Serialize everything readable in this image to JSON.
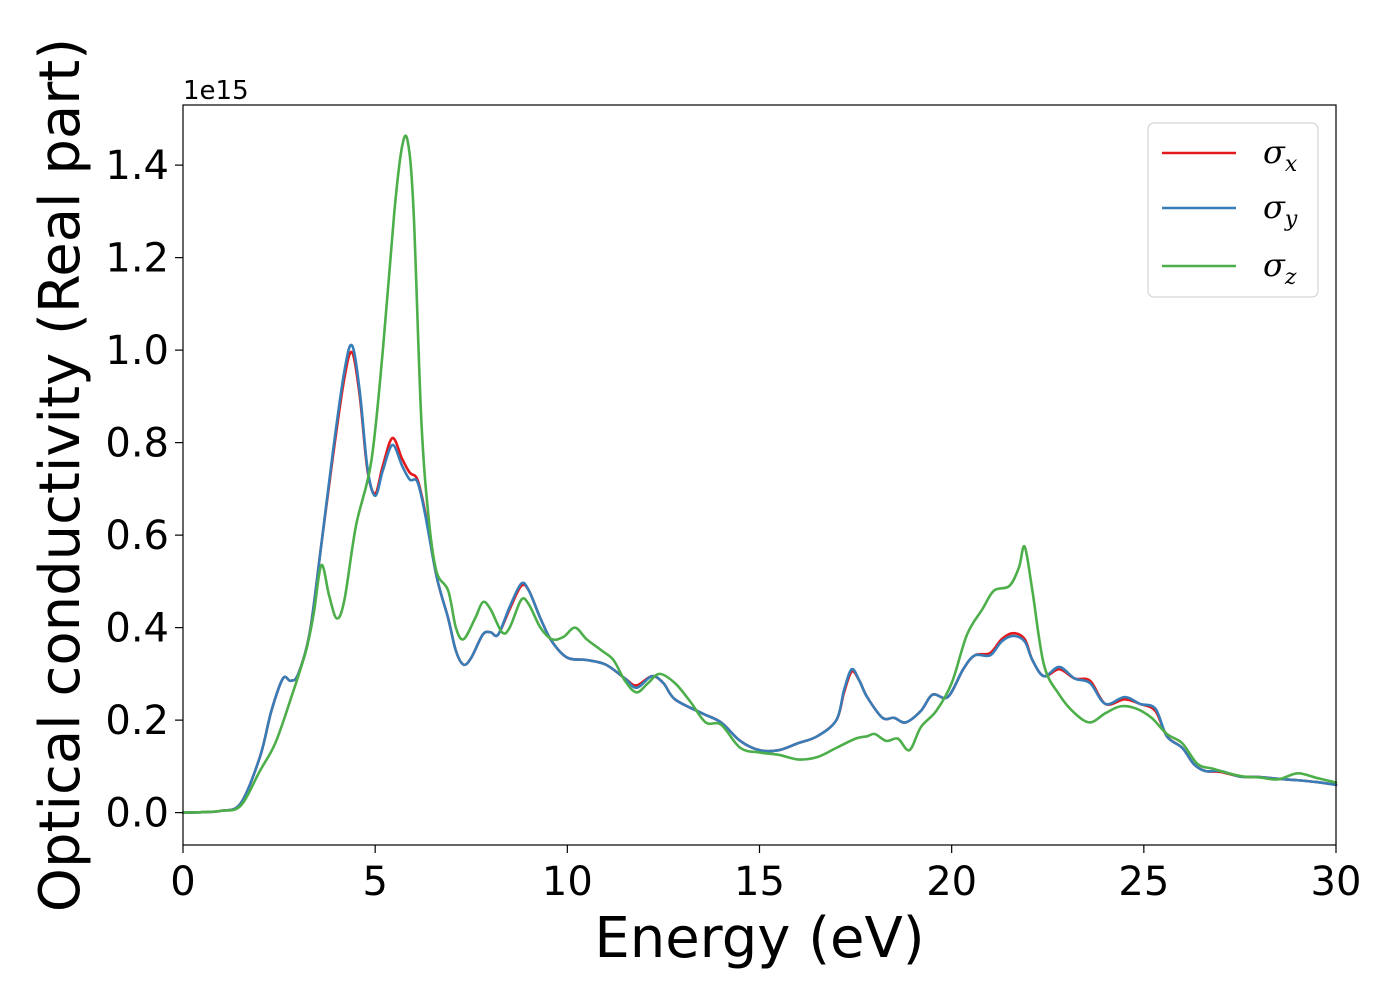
{
  "chart_data": {
    "type": "line",
    "title": "",
    "xlabel": "Energy (eV)",
    "ylabel": "Optical conductivity (Real part)",
    "y_offset_label": "1e15",
    "xlim": [
      0,
      30
    ],
    "ylim": [
      -0.07,
      1.53
    ],
    "x_ticks": [
      0,
      5,
      10,
      15,
      20,
      25,
      30
    ],
    "y_ticks": [
      0.0,
      0.2,
      0.4,
      0.6,
      0.8,
      1.0,
      1.2,
      1.4
    ],
    "y_tick_labels": [
      "0.0",
      "0.2",
      "0.4",
      "0.6",
      "0.8",
      "1.0",
      "1.2",
      "1.4"
    ],
    "grid": false,
    "legend": {
      "position": "top-right"
    },
    "series": [
      {
        "name": "σx",
        "symbol": "σ",
        "subscript": "x",
        "color": "#e41a1c",
        "points": [
          [
            0,
            0
          ],
          [
            0.5,
            0.001
          ],
          [
            1,
            0.004
          ],
          [
            1.5,
            0.02
          ],
          [
            2,
            0.12
          ],
          [
            2.3,
            0.22
          ],
          [
            2.6,
            0.29
          ],
          [
            2.8,
            0.285
          ],
          [
            3,
            0.3
          ],
          [
            3.3,
            0.39
          ],
          [
            3.6,
            0.58
          ],
          [
            3.9,
            0.77
          ],
          [
            4.2,
            0.94
          ],
          [
            4.4,
            0.995
          ],
          [
            4.6,
            0.9
          ],
          [
            4.8,
            0.74
          ],
          [
            5.0,
            0.69
          ],
          [
            5.2,
            0.75
          ],
          [
            5.45,
            0.81
          ],
          [
            5.7,
            0.765
          ],
          [
            5.9,
            0.735
          ],
          [
            6.1,
            0.72
          ],
          [
            6.3,
            0.65
          ],
          [
            6.6,
            0.51
          ],
          [
            6.9,
            0.42
          ],
          [
            7.1,
            0.35
          ],
          [
            7.3,
            0.32
          ],
          [
            7.5,
            0.335
          ],
          [
            7.8,
            0.385
          ],
          [
            8.0,
            0.39
          ],
          [
            8.2,
            0.385
          ],
          [
            8.5,
            0.44
          ],
          [
            8.8,
            0.49
          ],
          [
            9.0,
            0.48
          ],
          [
            9.3,
            0.42
          ],
          [
            9.6,
            0.37
          ],
          [
            10,
            0.335
          ],
          [
            10.5,
            0.33
          ],
          [
            11,
            0.32
          ],
          [
            11.5,
            0.29
          ],
          [
            11.8,
            0.275
          ],
          [
            12.2,
            0.295
          ],
          [
            12.5,
            0.28
          ],
          [
            12.8,
            0.245
          ],
          [
            13.5,
            0.215
          ],
          [
            14,
            0.195
          ],
          [
            14.5,
            0.155
          ],
          [
            15,
            0.135
          ],
          [
            15.5,
            0.135
          ],
          [
            16,
            0.15
          ],
          [
            16.5,
            0.165
          ],
          [
            17,
            0.2
          ],
          [
            17.2,
            0.26
          ],
          [
            17.4,
            0.305
          ],
          [
            17.6,
            0.285
          ],
          [
            17.8,
            0.25
          ],
          [
            18.2,
            0.205
          ],
          [
            18.5,
            0.205
          ],
          [
            18.8,
            0.195
          ],
          [
            19.2,
            0.22
          ],
          [
            19.5,
            0.255
          ],
          [
            19.9,
            0.25
          ],
          [
            20.3,
            0.31
          ],
          [
            20.6,
            0.34
          ],
          [
            21,
            0.345
          ],
          [
            21.3,
            0.375
          ],
          [
            21.6,
            0.388
          ],
          [
            21.9,
            0.375
          ],
          [
            22.1,
            0.33
          ],
          [
            22.4,
            0.295
          ],
          [
            22.8,
            0.31
          ],
          [
            23.2,
            0.29
          ],
          [
            23.6,
            0.285
          ],
          [
            24.0,
            0.235
          ],
          [
            24.5,
            0.245
          ],
          [
            24.9,
            0.235
          ],
          [
            25.3,
            0.22
          ],
          [
            25.6,
            0.165
          ],
          [
            26.0,
            0.14
          ],
          [
            26.3,
            0.105
          ],
          [
            26.6,
            0.09
          ],
          [
            27.0,
            0.088
          ],
          [
            27.5,
            0.078
          ],
          [
            28.0,
            0.077
          ],
          [
            28.5,
            0.073
          ],
          [
            29.0,
            0.07
          ],
          [
            29.5,
            0.066
          ],
          [
            30,
            0.06
          ]
        ]
      },
      {
        "name": "σy",
        "symbol": "σ",
        "subscript": "y",
        "color": "#377eb8",
        "points": [
          [
            0,
            0
          ],
          [
            0.5,
            0.001
          ],
          [
            1,
            0.004
          ],
          [
            1.5,
            0.02
          ],
          [
            2,
            0.12
          ],
          [
            2.3,
            0.22
          ],
          [
            2.6,
            0.29
          ],
          [
            2.8,
            0.285
          ],
          [
            3,
            0.3
          ],
          [
            3.3,
            0.39
          ],
          [
            3.6,
            0.58
          ],
          [
            3.9,
            0.78
          ],
          [
            4.2,
            0.955
          ],
          [
            4.4,
            1.01
          ],
          [
            4.6,
            0.91
          ],
          [
            4.8,
            0.745
          ],
          [
            5.0,
            0.685
          ],
          [
            5.2,
            0.74
          ],
          [
            5.45,
            0.795
          ],
          [
            5.7,
            0.75
          ],
          [
            5.9,
            0.72
          ],
          [
            6.1,
            0.715
          ],
          [
            6.3,
            0.645
          ],
          [
            6.6,
            0.51
          ],
          [
            6.9,
            0.42
          ],
          [
            7.1,
            0.35
          ],
          [
            7.3,
            0.32
          ],
          [
            7.5,
            0.335
          ],
          [
            7.8,
            0.385
          ],
          [
            8.0,
            0.39
          ],
          [
            8.2,
            0.385
          ],
          [
            8.5,
            0.445
          ],
          [
            8.8,
            0.495
          ],
          [
            9.0,
            0.48
          ],
          [
            9.3,
            0.42
          ],
          [
            9.6,
            0.37
          ],
          [
            10,
            0.335
          ],
          [
            10.5,
            0.33
          ],
          [
            11,
            0.32
          ],
          [
            11.5,
            0.29
          ],
          [
            11.8,
            0.27
          ],
          [
            12.2,
            0.295
          ],
          [
            12.5,
            0.28
          ],
          [
            12.8,
            0.245
          ],
          [
            13.5,
            0.215
          ],
          [
            14,
            0.195
          ],
          [
            14.5,
            0.155
          ],
          [
            15,
            0.135
          ],
          [
            15.5,
            0.135
          ],
          [
            16,
            0.15
          ],
          [
            16.5,
            0.165
          ],
          [
            17,
            0.2
          ],
          [
            17.2,
            0.265
          ],
          [
            17.4,
            0.31
          ],
          [
            17.6,
            0.285
          ],
          [
            17.8,
            0.25
          ],
          [
            18.2,
            0.205
          ],
          [
            18.5,
            0.205
          ],
          [
            18.8,
            0.195
          ],
          [
            19.2,
            0.22
          ],
          [
            19.5,
            0.255
          ],
          [
            19.9,
            0.25
          ],
          [
            20.3,
            0.31
          ],
          [
            20.6,
            0.34
          ],
          [
            21,
            0.34
          ],
          [
            21.3,
            0.37
          ],
          [
            21.6,
            0.382
          ],
          [
            21.9,
            0.37
          ],
          [
            22.1,
            0.33
          ],
          [
            22.4,
            0.295
          ],
          [
            22.8,
            0.315
          ],
          [
            23.2,
            0.29
          ],
          [
            23.6,
            0.28
          ],
          [
            24.0,
            0.235
          ],
          [
            24.5,
            0.25
          ],
          [
            24.9,
            0.235
          ],
          [
            25.3,
            0.225
          ],
          [
            25.6,
            0.165
          ],
          [
            26.0,
            0.14
          ],
          [
            26.3,
            0.105
          ],
          [
            26.6,
            0.09
          ],
          [
            27.0,
            0.09
          ],
          [
            27.5,
            0.078
          ],
          [
            28.0,
            0.077
          ],
          [
            28.5,
            0.073
          ],
          [
            29.0,
            0.07
          ],
          [
            29.5,
            0.066
          ],
          [
            30,
            0.06
          ]
        ]
      },
      {
        "name": "σz",
        "symbol": "σ",
        "subscript": "z",
        "color": "#4daf4a",
        "points": [
          [
            0,
            0
          ],
          [
            0.5,
            0.001
          ],
          [
            1,
            0.004
          ],
          [
            1.5,
            0.015
          ],
          [
            2,
            0.09
          ],
          [
            2.4,
            0.15
          ],
          [
            2.8,
            0.245
          ],
          [
            3.2,
            0.35
          ],
          [
            3.4,
            0.43
          ],
          [
            3.6,
            0.535
          ],
          [
            3.8,
            0.47
          ],
          [
            4.0,
            0.42
          ],
          [
            4.2,
            0.46
          ],
          [
            4.5,
            0.62
          ],
          [
            4.9,
            0.76
          ],
          [
            5.2,
            1.0
          ],
          [
            5.5,
            1.3
          ],
          [
            5.7,
            1.44
          ],
          [
            5.85,
            1.45
          ],
          [
            6.0,
            1.3
          ],
          [
            6.2,
            0.85
          ],
          [
            6.4,
            0.63
          ],
          [
            6.6,
            0.52
          ],
          [
            6.9,
            0.48
          ],
          [
            7.1,
            0.4
          ],
          [
            7.3,
            0.375
          ],
          [
            7.6,
            0.42
          ],
          [
            7.8,
            0.455
          ],
          [
            8.0,
            0.44
          ],
          [
            8.3,
            0.39
          ],
          [
            8.5,
            0.4
          ],
          [
            8.8,
            0.46
          ],
          [
            9.0,
            0.45
          ],
          [
            9.3,
            0.4
          ],
          [
            9.6,
            0.375
          ],
          [
            9.9,
            0.38
          ],
          [
            10.2,
            0.4
          ],
          [
            10.5,
            0.375
          ],
          [
            10.9,
            0.35
          ],
          [
            11.2,
            0.33
          ],
          [
            11.5,
            0.285
          ],
          [
            11.8,
            0.26
          ],
          [
            12.1,
            0.28
          ],
          [
            12.4,
            0.3
          ],
          [
            12.8,
            0.28
          ],
          [
            13.2,
            0.24
          ],
          [
            13.6,
            0.195
          ],
          [
            14,
            0.19
          ],
          [
            14.5,
            0.14
          ],
          [
            15,
            0.13
          ],
          [
            15.5,
            0.125
          ],
          [
            16,
            0.115
          ],
          [
            16.5,
            0.12
          ],
          [
            17,
            0.14
          ],
          [
            17.5,
            0.16
          ],
          [
            17.8,
            0.165
          ],
          [
            18,
            0.17
          ],
          [
            18.3,
            0.155
          ],
          [
            18.6,
            0.16
          ],
          [
            18.9,
            0.135
          ],
          [
            19.2,
            0.185
          ],
          [
            19.6,
            0.22
          ],
          [
            20,
            0.28
          ],
          [
            20.4,
            0.385
          ],
          [
            20.8,
            0.44
          ],
          [
            21.1,
            0.48
          ],
          [
            21.5,
            0.49
          ],
          [
            21.75,
            0.53
          ],
          [
            21.9,
            0.575
          ],
          [
            22.1,
            0.48
          ],
          [
            22.4,
            0.32
          ],
          [
            22.8,
            0.255
          ],
          [
            23.2,
            0.215
          ],
          [
            23.6,
            0.195
          ],
          [
            24.0,
            0.215
          ],
          [
            24.4,
            0.23
          ],
          [
            24.8,
            0.225
          ],
          [
            25.2,
            0.205
          ],
          [
            25.6,
            0.17
          ],
          [
            26.0,
            0.15
          ],
          [
            26.4,
            0.105
          ],
          [
            26.8,
            0.095
          ],
          [
            27.2,
            0.085
          ],
          [
            27.6,
            0.078
          ],
          [
            28.0,
            0.076
          ],
          [
            28.5,
            0.072
          ],
          [
            29.0,
            0.085
          ],
          [
            29.5,
            0.075
          ],
          [
            30,
            0.065
          ]
        ]
      }
    ]
  }
}
